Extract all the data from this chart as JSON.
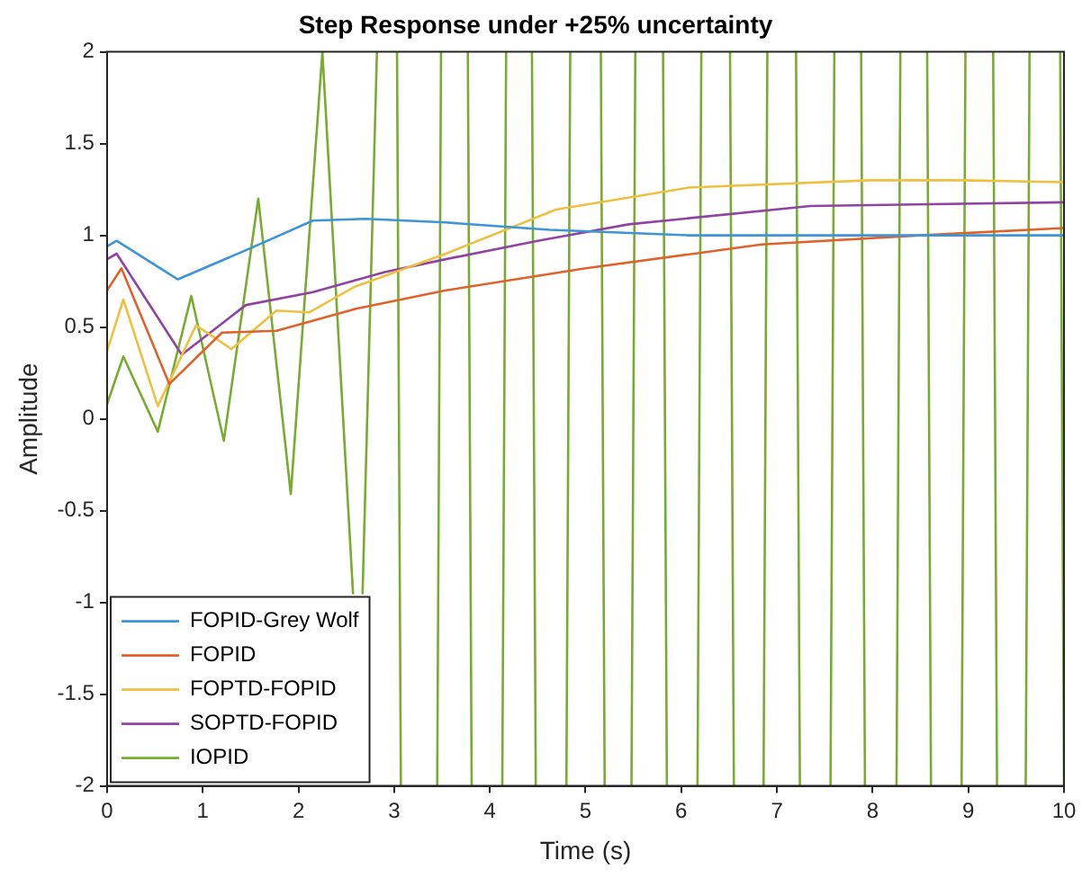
{
  "chart_data": {
    "type": "line",
    "title": "Step Response under +25% uncertainty",
    "xlabel": "Time (s)",
    "ylabel": "Amplitude",
    "xlim": [
      0,
      10
    ],
    "xticks": [
      0,
      1,
      2,
      3,
      4,
      5,
      6,
      7,
      8,
      9,
      10
    ],
    "ylim": [
      -2,
      2
    ],
    "yticks": [
      -2,
      -1.5,
      -1,
      -0.5,
      0,
      0.5,
      1,
      1.5,
      2
    ],
    "grid": false,
    "legend": "bottom left",
    "marker": "none",
    "line_style": "solid",
    "series": [
      {
        "name": "FOPID-Grey Wolf",
        "color": "#3d94d6",
        "x": [
          0,
          0.1,
          0.74,
          1.5,
          2.15,
          2.7,
          3.54,
          4.63,
          6.08,
          8,
          10
        ],
        "values": [
          0.94,
          0.97,
          0.76,
          0.93,
          1.08,
          1.09,
          1.07,
          1.03,
          1.0,
          1.0,
          1.0
        ]
      },
      {
        "name": "FOPID",
        "color": "#e0622b",
        "x": [
          0,
          0.15,
          0.65,
          1.2,
          1.77,
          2.6,
          3.54,
          5,
          6.84,
          8.5,
          10
        ],
        "values": [
          0.7,
          0.82,
          0.19,
          0.47,
          0.48,
          0.6,
          0.7,
          0.82,
          0.95,
          1.0,
          1.04
        ]
      },
      {
        "name": "FOPTD-FOPID",
        "color": "#eec040",
        "x": [
          0,
          0.17,
          0.53,
          0.93,
          1.3,
          1.77,
          2.11,
          2.59,
          3.54,
          4.69,
          6.08,
          7.98,
          8.93,
          10
        ],
        "values": [
          0.37,
          0.65,
          0.07,
          0.51,
          0.38,
          0.59,
          0.58,
          0.72,
          0.9,
          1.14,
          1.26,
          1.3,
          1.3,
          1.29
        ]
      },
      {
        "name": "SOPTD-FOPID",
        "color": "#8e44a0",
        "x": [
          0,
          0.1,
          0.78,
          1.45,
          2.15,
          2.9,
          3.54,
          4.5,
          5.45,
          7.35,
          10
        ],
        "values": [
          0.87,
          0.9,
          0.35,
          0.62,
          0.69,
          0.8,
          0.87,
          0.97,
          1.06,
          1.16,
          1.18
        ]
      },
      {
        "name": "IOPID",
        "color": "#77ac30",
        "x": [
          0,
          0.17,
          0.53,
          0.88,
          1.22,
          1.58,
          1.92,
          2.25,
          2.57,
          2.62,
          2.67,
          2.82,
          2.95,
          3.03,
          3.07,
          3.25,
          3.45,
          3.49,
          3.6,
          3.77,
          3.81,
          4.0,
          4.13,
          4.17,
          4.3,
          4.44,
          4.48,
          4.65,
          4.8,
          4.84,
          5.0,
          5.16,
          5.2,
          5.35,
          5.48,
          5.52,
          5.65,
          5.81,
          5.85,
          6.0,
          6.17,
          6.21,
          6.35,
          6.51,
          6.55,
          6.7,
          6.86,
          6.9,
          7.05,
          7.2,
          7.24,
          7.4,
          7.56,
          7.6,
          7.75,
          7.88,
          7.92,
          8.1,
          8.25,
          8.29,
          8.45,
          8.57,
          8.61,
          8.8,
          8.93,
          8.97,
          9.1,
          9.26,
          9.3,
          9.45,
          9.6,
          9.64,
          9.8,
          9.96,
          10
        ],
        "values": [
          0.08,
          0.34,
          -0.07,
          0.67,
          -0.12,
          1.2,
          -0.41,
          2,
          -0.95,
          null,
          -0.95,
          2,
          null,
          2,
          -2,
          null,
          -2,
          2,
          null,
          2,
          -2,
          null,
          -2,
          2,
          null,
          2,
          -2,
          null,
          -2,
          2,
          null,
          2,
          -2,
          null,
          -2,
          2,
          null,
          2,
          -2,
          null,
          -2,
          2,
          null,
          2,
          -2,
          null,
          -2,
          2,
          null,
          2,
          -2,
          null,
          -2,
          2,
          null,
          2,
          -2,
          null,
          -2,
          2,
          null,
          2,
          -2,
          null,
          -2,
          2,
          null,
          2,
          -2,
          null,
          -2,
          2,
          null,
          2,
          -2
        ]
      }
    ]
  }
}
